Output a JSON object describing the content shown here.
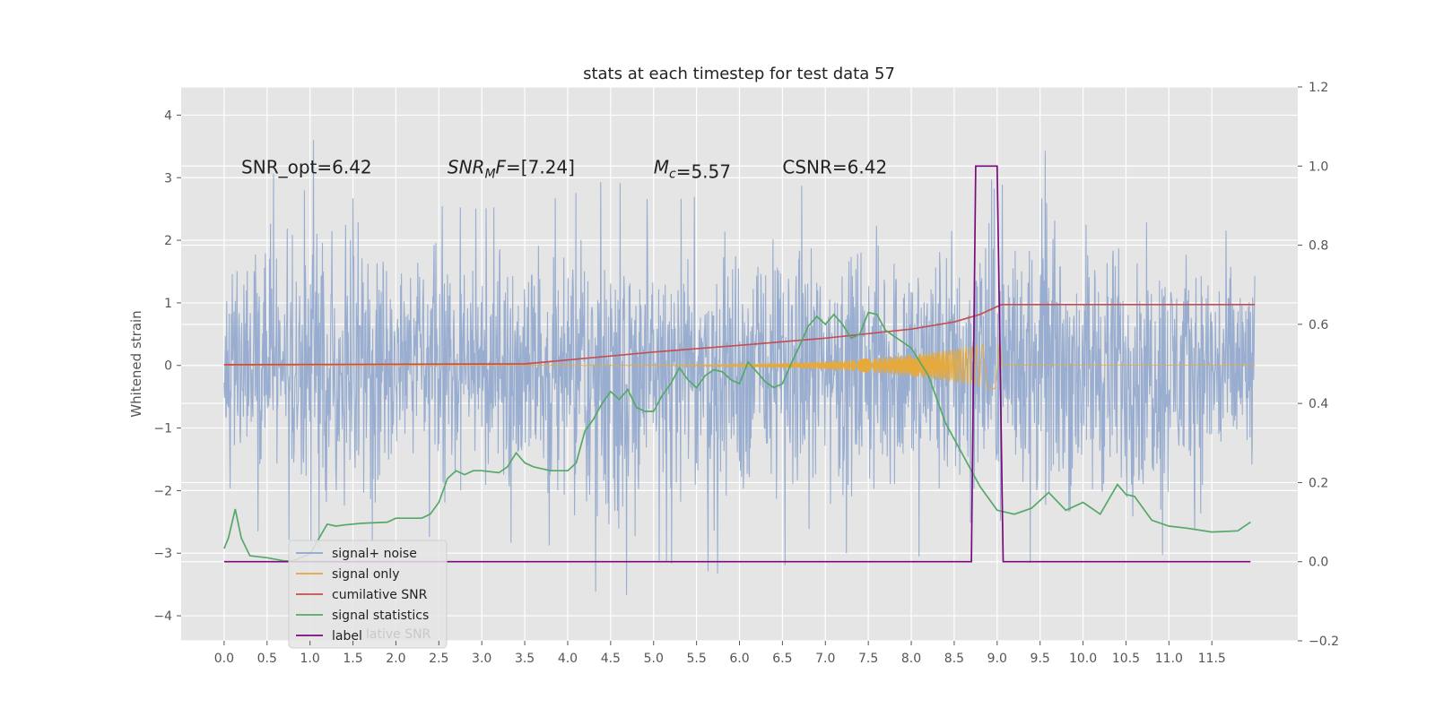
{
  "chart_data": {
    "type": "line",
    "title": "stats at each timestep for test data 57",
    "ylabel_left": "Whitened strain",
    "xlim": [
      -0.5,
      12.5
    ],
    "ylim_left": [
      -4.4,
      4.45
    ],
    "ylim_right": [
      -0.2,
      1.2
    ],
    "grid": true,
    "x_ticks": [
      0.0,
      0.5,
      1.0,
      1.5,
      2.0,
      2.5,
      3.0,
      3.5,
      4.0,
      4.5,
      5.0,
      5.5,
      6.0,
      6.5,
      7.0,
      7.5,
      8.0,
      8.5,
      9.0,
      9.5,
      10.0,
      10.5,
      11.0,
      11.5
    ],
    "x_tick_labels": [
      "0.0",
      "0.5",
      "1.0",
      "1.5",
      "2.0",
      "2.5",
      "3.0",
      "3.5",
      "4.0",
      "4.5",
      "5.0",
      "5.5",
      "6.0",
      "6.5",
      "7.0",
      "7.5",
      "8.0",
      "8.5",
      "9.0",
      "9.5",
      "10.0",
      "10.5",
      "11.0",
      "11.5"
    ],
    "y_left_ticks": [
      -4,
      -3,
      -2,
      -1,
      0,
      1,
      2,
      3,
      4
    ],
    "y_left_tick_labels": [
      "−4",
      "−3",
      "−2",
      "−1",
      "0",
      "1",
      "2",
      "3",
      "4"
    ],
    "y_right_ticks": [
      -0.2,
      0.0,
      0.2,
      0.4,
      0.6,
      0.8,
      1.0,
      1.2
    ],
    "y_right_tick_labels": [
      "−0.2",
      "0.0",
      "0.2",
      "0.4",
      "0.6",
      "0.8",
      "1.0",
      "1.2"
    ],
    "annotations": [
      {
        "x": 0.2,
        "y": 3.2,
        "text": "SNR_opt=6.42"
      },
      {
        "x": 2.6,
        "y": 3.2,
        "text": "SNR_MF=[7.24]"
      },
      {
        "x": 5.0,
        "y": 3.2,
        "text": "M_c=5.57"
      },
      {
        "x": 6.5,
        "y": 3.2,
        "text": "CSNR=6.42"
      }
    ],
    "legend": {
      "placement": "lower-left",
      "entries": [
        "signal+ noise",
        "signal only",
        "cumilative SNR",
        "signal statistics",
        "label"
      ],
      "obscured_text": "lative SNR"
    },
    "noise_envelope": {
      "t": [
        0,
        1.3,
        2,
        3,
        4,
        4.5,
        5,
        6,
        7,
        8,
        8.7,
        9,
        10,
        11,
        12
      ],
      "upper": [
        2.4,
        3.9,
        2.6,
        2.5,
        2.7,
        3.0,
        2.6,
        2.8,
        2.9,
        2.8,
        3.2,
        4.1,
        2.9,
        2.6,
        2.3
      ],
      "lower": [
        -2.5,
        -3.0,
        -2.7,
        -2.8,
        -2.9,
        -4.0,
        -3.1,
        -3.4,
        -3.0,
        -3.0,
        -3.4,
        -3.0,
        -3.4,
        -3.0,
        -3.1
      ]
    },
    "series": [
      {
        "name": "signal+ noise",
        "axis": "left",
        "color": "#8fa6cc",
        "kind": "noise",
        "t_range": [
          0,
          12
        ]
      },
      {
        "name": "signal only",
        "axis": "left",
        "color": "#e6a93c",
        "kind": "chirp",
        "t_start": 3.5,
        "t_end": 9.05,
        "amp_start": 0.005,
        "amp_end": 0.4
      },
      {
        "name": "cumilative SNR",
        "axis": "right",
        "color": "#c44e52",
        "x": [
          0,
          3.5,
          4,
          5,
          6,
          7,
          8,
          8.5,
          8.8,
          9.05,
          12
        ],
        "y": [
          0.498,
          0.5,
          0.51,
          0.53,
          0.547,
          0.565,
          0.588,
          0.606,
          0.625,
          0.65,
          0.65
        ]
      },
      {
        "name": "signal statistics",
        "axis": "right",
        "color": "#55a868",
        "x": [
          0,
          0.05,
          0.13,
          0.2,
          0.3,
          0.5,
          0.7,
          0.8,
          1.0,
          1.2,
          1.3,
          1.4,
          1.6,
          1.9,
          2.0,
          2.3,
          2.4,
          2.5,
          2.6,
          2.7,
          2.8,
          2.9,
          3.0,
          3.2,
          3.3,
          3.4,
          3.5,
          3.6,
          3.8,
          4.0,
          4.1,
          4.2,
          4.3,
          4.4,
          4.5,
          4.6,
          4.7,
          4.8,
          4.9,
          5.0,
          5.1,
          5.2,
          5.3,
          5.4,
          5.5,
          5.6,
          5.7,
          5.8,
          5.9,
          6.0,
          6.1,
          6.2,
          6.3,
          6.4,
          6.5,
          6.6,
          6.7,
          6.8,
          6.9,
          7.0,
          7.1,
          7.2,
          7.3,
          7.4,
          7.5,
          7.6,
          7.7,
          7.8,
          7.9,
          8.0,
          8.2,
          8.4,
          8.6,
          8.8,
          9.0,
          9.2,
          9.4,
          9.6,
          9.8,
          10.0,
          10.2,
          10.4,
          10.5,
          10.6,
          10.8,
          11.0,
          11.2,
          11.5,
          11.8,
          11.95
        ],
        "y": [
          0.033,
          0.06,
          0.133,
          0.06,
          0.015,
          0.01,
          0.002,
          0.002,
          0.02,
          0.095,
          0.09,
          0.093,
          0.097,
          0.1,
          0.11,
          0.11,
          0.12,
          0.15,
          0.21,
          0.23,
          0.22,
          0.23,
          0.23,
          0.225,
          0.24,
          0.275,
          0.25,
          0.24,
          0.23,
          0.23,
          0.25,
          0.33,
          0.36,
          0.4,
          0.43,
          0.41,
          0.435,
          0.39,
          0.38,
          0.38,
          0.42,
          0.45,
          0.49,
          0.46,
          0.44,
          0.47,
          0.485,
          0.48,
          0.46,
          0.45,
          0.505,
          0.48,
          0.455,
          0.44,
          0.45,
          0.5,
          0.545,
          0.595,
          0.62,
          0.6,
          0.625,
          0.6,
          0.565,
          0.575,
          0.63,
          0.625,
          0.585,
          0.57,
          0.555,
          0.54,
          0.47,
          0.35,
          0.27,
          0.19,
          0.13,
          0.12,
          0.135,
          0.175,
          0.13,
          0.15,
          0.12,
          0.195,
          0.17,
          0.165,
          0.105,
          0.09,
          0.085,
          0.075,
          0.078,
          0.1
        ]
      },
      {
        "name": "label",
        "axis": "right",
        "color": "#7b0a7b",
        "x": [
          0,
          8.7,
          8.75,
          9.0,
          9.07,
          11.95
        ],
        "y": [
          0,
          0,
          1,
          1,
          0,
          0
        ]
      }
    ]
  }
}
